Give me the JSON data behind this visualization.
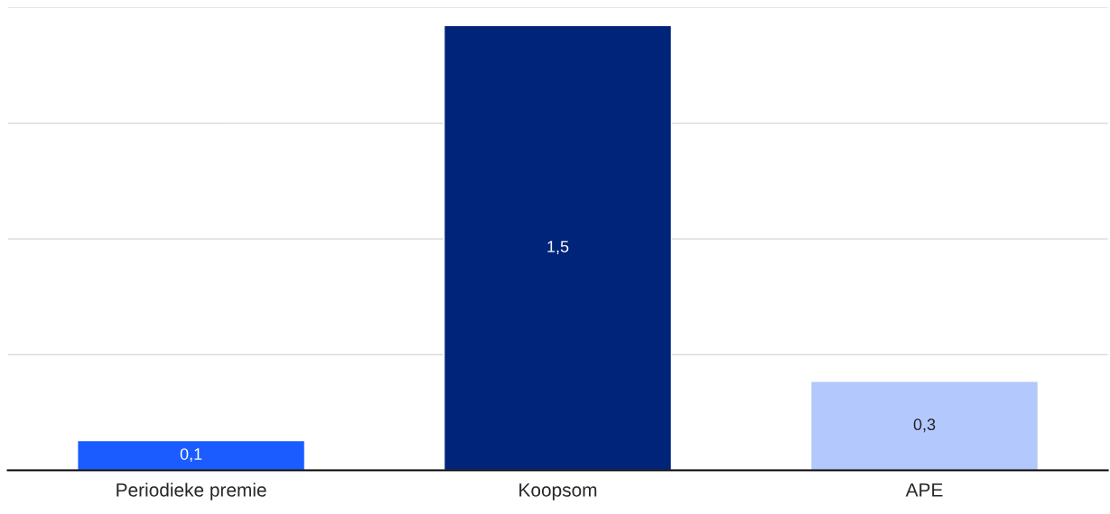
{
  "chart_data": {
    "type": "bar",
    "categories": [
      "Periodieke premie",
      "Koopsom",
      "APE"
    ],
    "values": [
      0.1,
      1.5,
      0.3
    ],
    "colors": [
      "#1a5cff",
      "#00247a",
      "#b3c8fd"
    ],
    "value_labels": [
      "0,1",
      "1,5",
      "0,3"
    ],
    "ylim": [
      0,
      1.56
    ],
    "yticks": [
      {
        "value": 0,
        "label": null
      },
      {
        "value": 0.39,
        "label": null
      },
      {
        "value": 0.78,
        "label": null
      },
      {
        "value": 1.17,
        "label": null
      },
      {
        "value": 1.56,
        "label": null
      }
    ],
    "tick_labels": "x",
    "grid": "y",
    "legend": false
  }
}
